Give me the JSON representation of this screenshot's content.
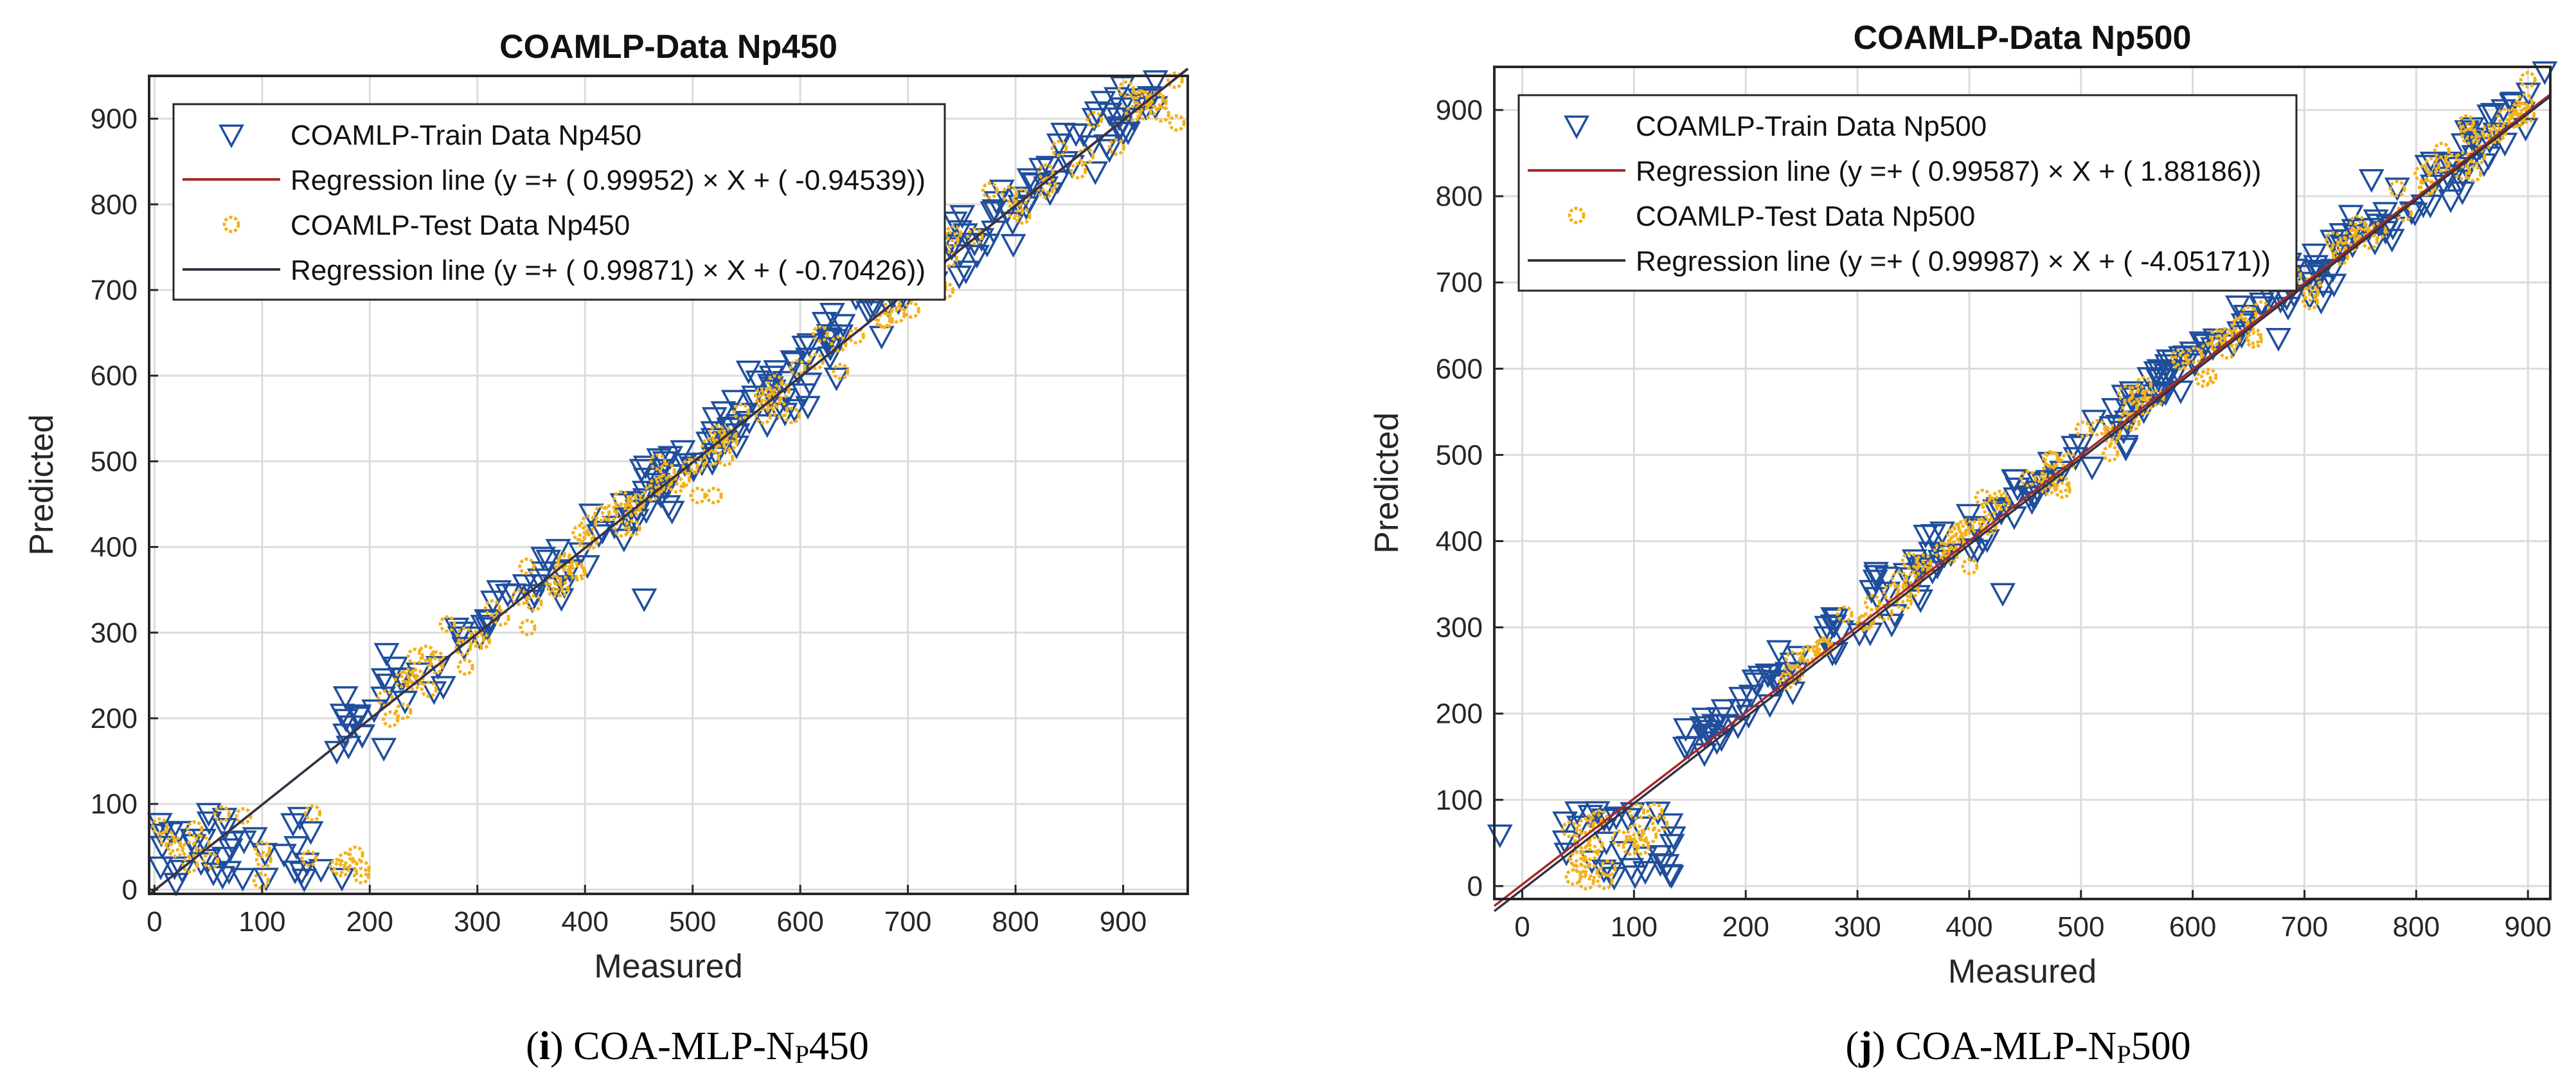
{
  "chart_data": [
    {
      "type": "scatter",
      "title": "COAMLP-Data Np450",
      "xlabel": "Measured",
      "ylabel": "Predicted",
      "xlim": [
        -5,
        960
      ],
      "ylim": [
        -5,
        950
      ],
      "xticks": [
        0,
        100,
        200,
        300,
        400,
        500,
        600,
        700,
        800,
        900
      ],
      "yticks": [
        0,
        100,
        200,
        300,
        400,
        500,
        600,
        700,
        800,
        900
      ],
      "grid": true,
      "legend_position": "top-left",
      "legend": [
        "COAMLP-Train Data Np450",
        "Regression line (y =+ ( 0.99952) × X + ( -0.94539))",
        "COAMLP-Test Data Np450",
        "Regression line (y =+ ( 0.99871) × X + ( -0.70426))"
      ],
      "series": [
        {
          "name": "COAMLP-Train Data Np450",
          "kind": "scatter",
          "marker": "triangle-down",
          "color": "#1f4e9c",
          "cluster_low": {
            "x_range": [
              0,
              180
            ],
            "y_range": [
              10,
              90
            ],
            "n": 38
          },
          "cluster_main": {
            "x_range": [
              160,
              930
            ],
            "slope": 1.0,
            "intercept": 5,
            "spread": 30,
            "n": 230
          },
          "outliers": [
            [
              455,
              340
            ],
            [
              20,
              8
            ],
            [
              5,
              78
            ],
            [
              930,
              945
            ]
          ]
        },
        {
          "name": "Regression line (train)",
          "kind": "line",
          "color": "#a52a2a",
          "slope": 0.99952,
          "intercept": -0.94539
        },
        {
          "name": "COAMLP-Test Data Np450",
          "kind": "scatter",
          "marker": "hexagram",
          "color": "#f2b21b",
          "cluster_low": {
            "x_range": [
              0,
              200
            ],
            "y_range": [
              10,
              95
            ],
            "n": 22
          },
          "cluster_main": {
            "x_range": [
              200,
              950
            ],
            "slope": 1.0,
            "intercept": 0,
            "spread": 28,
            "n": 120
          },
          "outliers": [
            [
              505,
              460
            ],
            [
              520,
              460
            ],
            [
              950,
              895
            ]
          ]
        },
        {
          "name": "Regression line (test)",
          "kind": "line",
          "color": "#333344",
          "slope": 0.99871,
          "intercept": -0.70426
        }
      ],
      "caption": {
        "letter": "i",
        "text_before": "COA-MLP-N",
        "sub": "P",
        "text_after": "450"
      }
    },
    {
      "type": "scatter",
      "title": "COAMLP-Data Np500",
      "xlabel": "Measured",
      "ylabel": "Predicted",
      "xlim": [
        -25,
        920
      ],
      "ylim": [
        -15,
        950
      ],
      "xticks": [
        0,
        100,
        200,
        300,
        400,
        500,
        600,
        700,
        800,
        900
      ],
      "yticks": [
        0,
        100,
        200,
        300,
        400,
        500,
        600,
        700,
        800,
        900
      ],
      "grid": true,
      "legend_position": "top-left",
      "legend": [
        "COAMLP-Train Data Np500",
        "Regression line (y =+ ( 0.99587) × X + ( 1.88186))",
        "COAMLP-Test Data Np500",
        "Regression line (y =+ ( 0.99987) × X + ( -4.05171))"
      ],
      "series": [
        {
          "name": "COAMLP-Train Data Np500",
          "kind": "scatter",
          "marker": "triangle-down",
          "color": "#1f4e9c",
          "cluster_low": {
            "x_range": [
              35,
              140
            ],
            "y_range": [
              10,
              90
            ],
            "n": 32
          },
          "cluster_main": {
            "x_range": [
              140,
              915
            ],
            "slope": 0.98,
            "intercept": 20,
            "spread": 25,
            "n": 240
          },
          "outliers": [
            [
              -20,
              60
            ],
            [
              430,
              340
            ],
            [
              760,
              820
            ],
            [
              915,
              945
            ]
          ]
        },
        {
          "name": "Regression line (train)",
          "kind": "line",
          "color": "#a52a2a",
          "slope": 0.99587,
          "intercept": 1.88186
        },
        {
          "name": "COAMLP-Test Data Np500",
          "kind": "scatter",
          "marker": "hexagram",
          "color": "#f2b21b",
          "cluster_low": {
            "x_range": [
              40,
              130
            ],
            "y_range": [
              5,
              95
            ],
            "n": 24
          },
          "cluster_main": {
            "x_range": [
              230,
              900
            ],
            "slope": 1.0,
            "intercept": 5,
            "spread": 22,
            "n": 120
          },
          "outliers": [
            [
              845,
              885
            ],
            [
              900,
              935
            ]
          ]
        },
        {
          "name": "Regression line (test)",
          "kind": "line",
          "color": "#333344",
          "slope": 0.99987,
          "intercept": -4.05171
        }
      ],
      "caption": {
        "letter": "j",
        "text_before": "COA-MLP-N",
        "sub": "P",
        "text_after": "500"
      }
    }
  ]
}
